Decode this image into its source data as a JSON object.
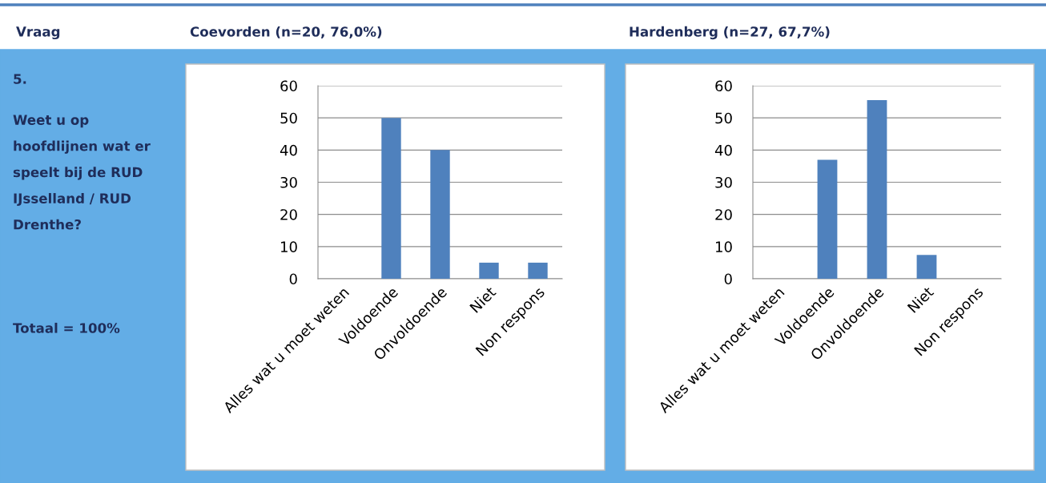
{
  "chart_data": [
    {
      "type": "bar",
      "title": "Coevorden (n=20, 76,0%)",
      "categories": [
        "Alles wat u moet weten",
        "Voldoende",
        "Onvoldoende",
        "Niet",
        "Non respons"
      ],
      "values": [
        0,
        50,
        40,
        5,
        5
      ],
      "color": "#4f81bd",
      "ylim": [
        0,
        60
      ],
      "yticks": [
        0,
        10,
        20,
        30,
        40,
        50,
        60
      ],
      "grid": "y",
      "legend": false,
      "annotations": [
        "Vraag",
        "5.",
        "Weet u op hoofdlijnen wat er speelt bij de RUD IJsselland / RUD Drenthe?",
        "Totaal = 100%"
      ]
    },
    {
      "type": "bar",
      "title": "Hardenberg (n=27, 67,7%)",
      "categories": [
        "Alles wat u moet weten",
        "Voldoende",
        "Onvoldoende",
        "Niet",
        "Non respons"
      ],
      "values": [
        0,
        37,
        55.5,
        7.4,
        0
      ],
      "color": "#4f81bd",
      "ylim": [
        0,
        60
      ],
      "yticks": [
        0,
        10,
        20,
        30,
        40,
        50,
        60
      ],
      "grid": "y",
      "legend": false
    }
  ]
}
